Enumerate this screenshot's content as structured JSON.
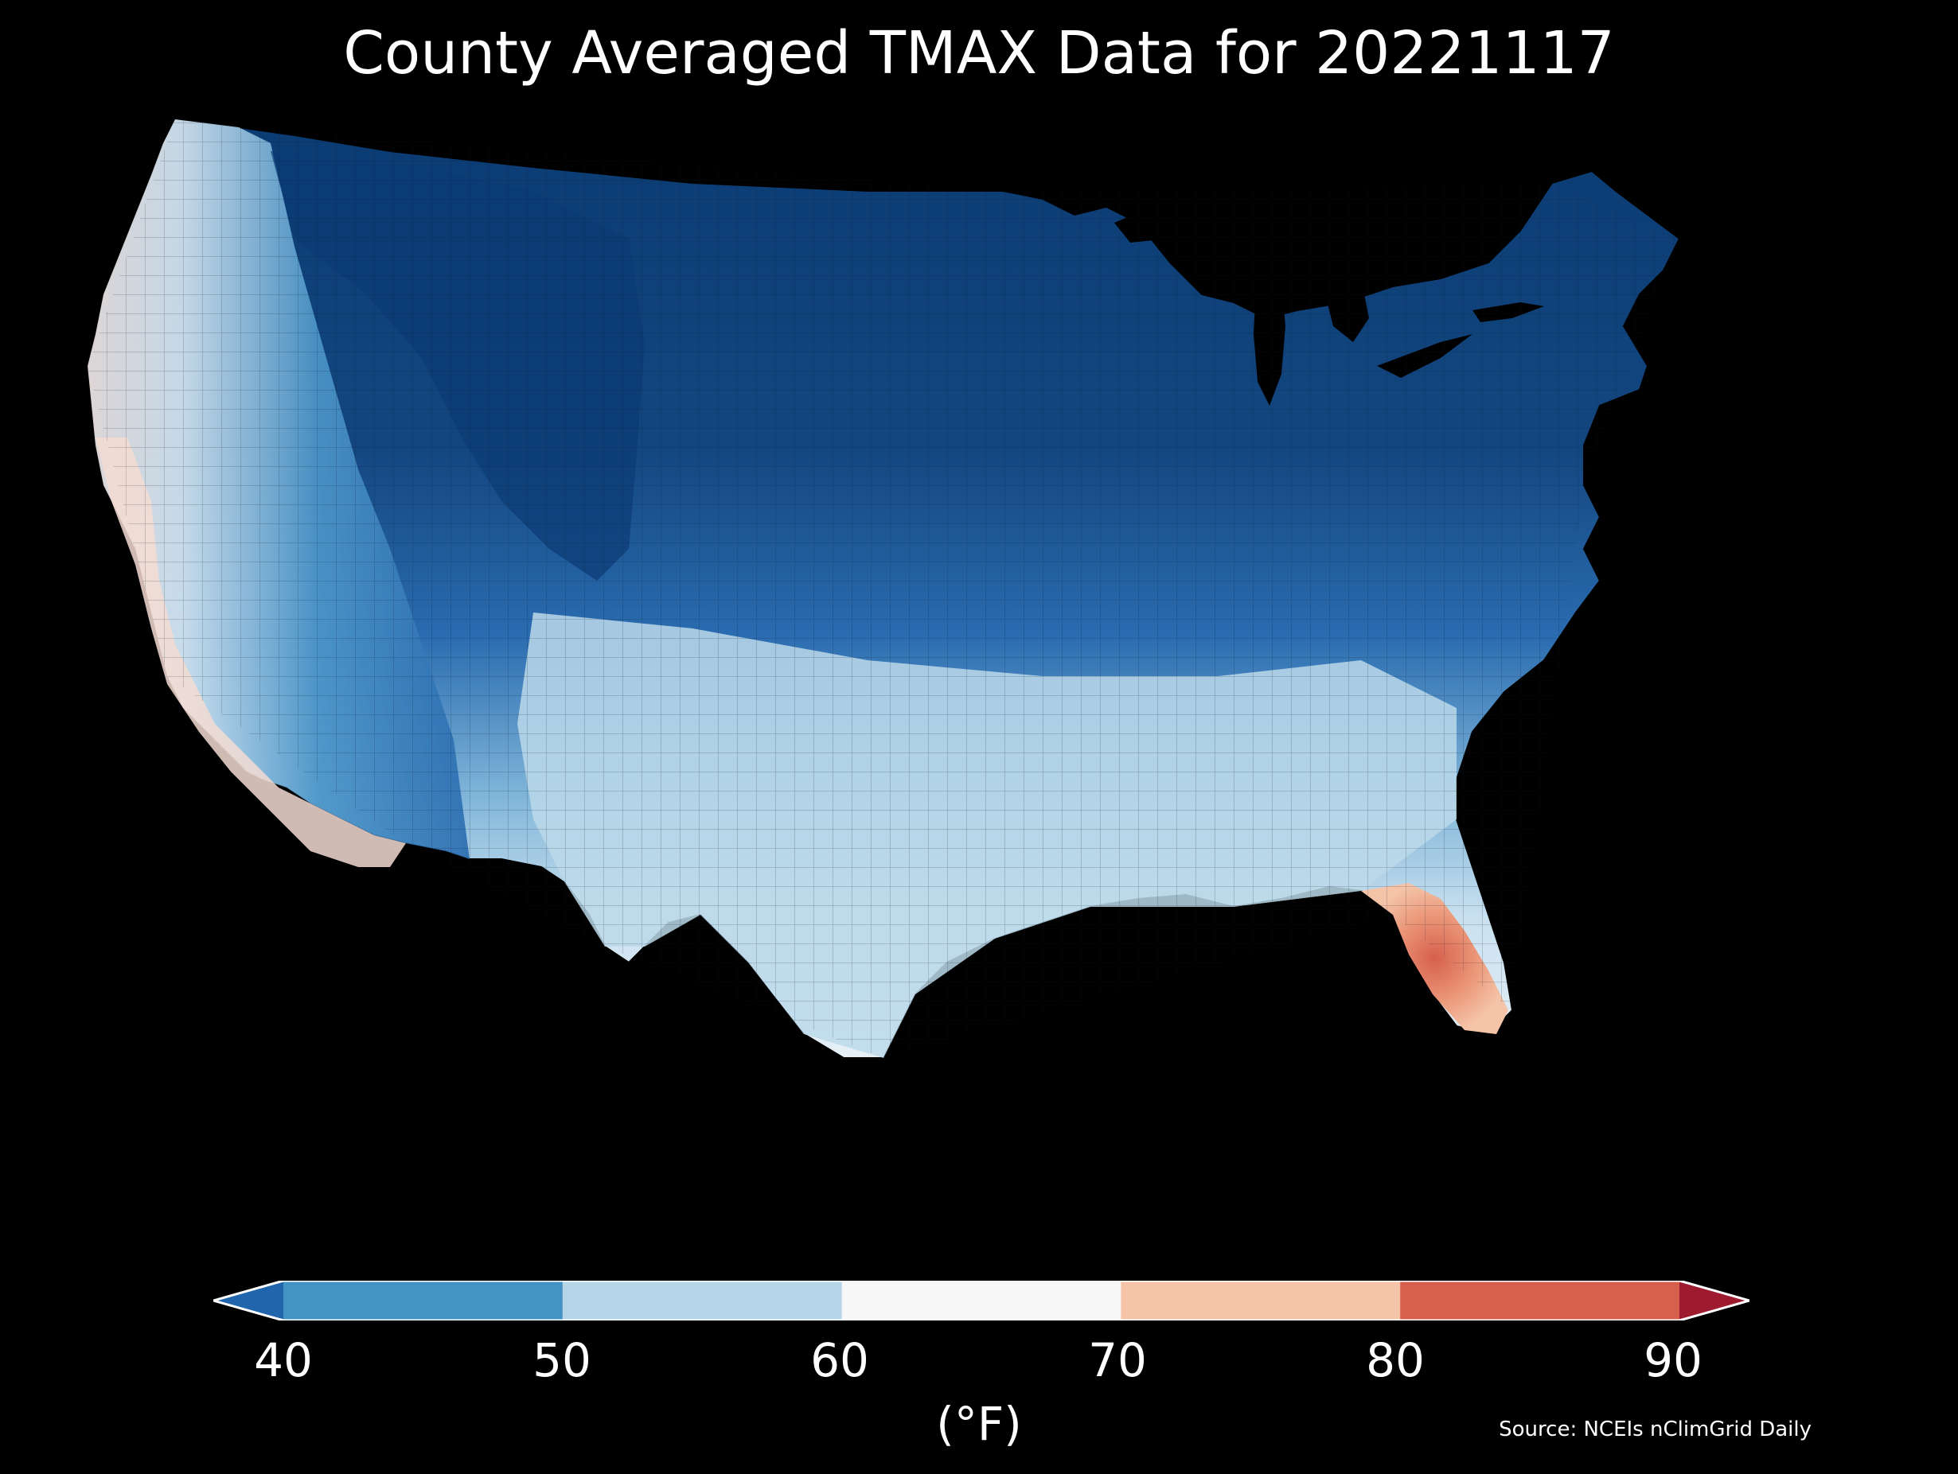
{
  "title": "County Averaged TMAX Data for 20221117",
  "colorbar": {
    "ticks": [
      "40",
      "50",
      "60",
      "70",
      "80",
      "90"
    ],
    "unit": "(°F)",
    "bins": [
      {
        "range": "<40",
        "color": "#2166ac"
      },
      {
        "range": "40-50",
        "color": "#4393c3"
      },
      {
        "range": "50-60",
        "color": "#b5d5e8"
      },
      {
        "range": "60-70",
        "color": "#f7f7f7"
      },
      {
        "range": "70-80",
        "color": "#f4c3a8"
      },
      {
        "range": "80-90",
        "color": "#d6604d"
      },
      {
        "range": ">90",
        "color": "#9e1a2e"
      }
    ]
  },
  "source": "Source: NCEIs nClimGrid Daily",
  "map": {
    "region": "Contiguous United States",
    "variable": "TMAX",
    "date": "20221117",
    "background_color": "#000000"
  }
}
